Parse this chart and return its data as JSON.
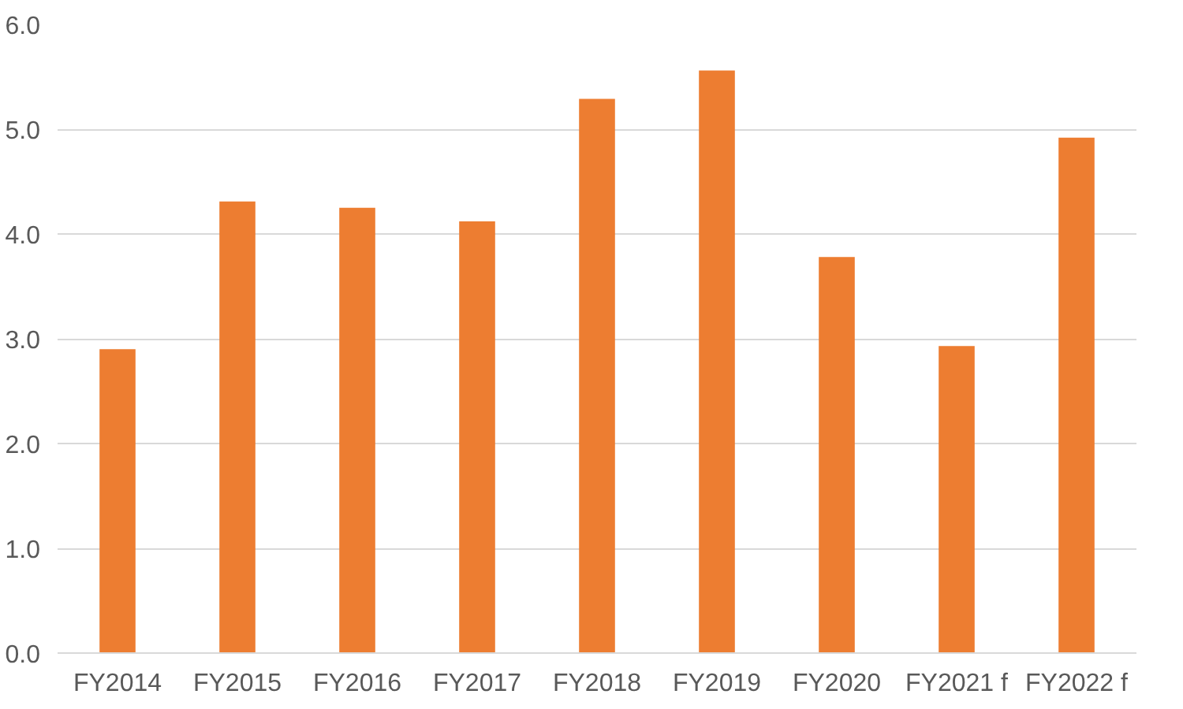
{
  "chart_data": {
    "type": "bar",
    "categories": [
      "FY2014",
      "FY2015",
      "FY2016",
      "FY2017",
      "FY2018",
      "FY2019",
      "FY2020",
      "FY2021 f",
      "FY2022 f"
    ],
    "values": [
      2.9,
      4.31,
      4.25,
      4.12,
      5.29,
      5.56,
      3.78,
      2.93,
      4.92
    ],
    "color": "#ed7d31",
    "ylim": [
      0,
      6
    ],
    "yticks": [
      {
        "value": 0,
        "label": "0.0"
      },
      {
        "value": 1,
        "label": "1.0"
      },
      {
        "value": 2,
        "label": "2.0"
      },
      {
        "value": 3,
        "label": "3.0"
      },
      {
        "value": 4,
        "label": "4.0"
      },
      {
        "value": 5,
        "label": "5.0"
      },
      {
        "value": 6,
        "label": "6.0"
      }
    ],
    "grid": "y"
  }
}
